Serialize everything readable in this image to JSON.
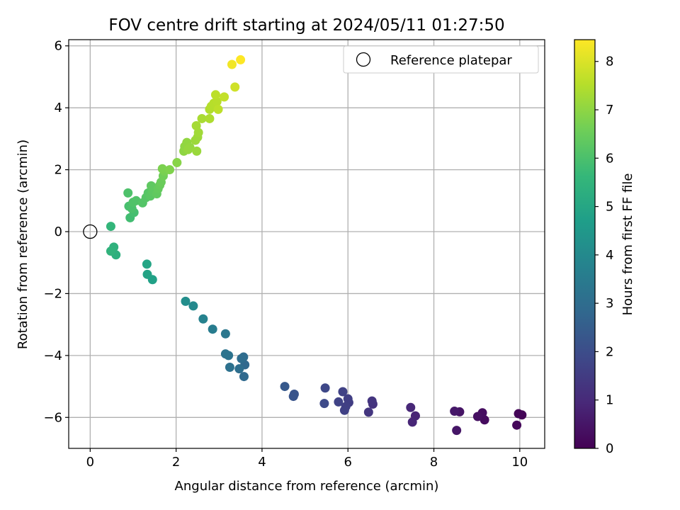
{
  "chart_data": {
    "type": "scatter",
    "title": "FOV centre drift starting at 2024/05/11 01:27:50",
    "xlabel": "Angular distance from reference (arcmin)",
    "ylabel": "Rotation from reference (arcmin)",
    "xlim": [
      -0.5,
      10.58
    ],
    "ylim": [
      -7.0,
      6.2
    ],
    "x_ticks": [
      0,
      2,
      4,
      6,
      8,
      10
    ],
    "y_ticks": [
      -6,
      -4,
      -2,
      0,
      2,
      4,
      6
    ],
    "x_tick_labels": [
      "0",
      "2",
      "4",
      "6",
      "8",
      "10"
    ],
    "y_tick_labels": [
      "−6",
      "−4",
      "−2",
      "0",
      "2",
      "4",
      "6"
    ],
    "grid": true,
    "legend": {
      "position": "upper-right",
      "label": "Reference platepar"
    },
    "reference_point": {
      "x": 0,
      "y": 0
    },
    "colorbar": {
      "label": "Hours from first FF file",
      "colormap": "viridis",
      "range": [
        0,
        8.45
      ],
      "ticks": [
        0,
        1,
        2,
        3,
        4,
        5,
        6,
        7,
        8
      ],
      "tick_labels": [
        "0",
        "1",
        "2",
        "3",
        "4",
        "5",
        "6",
        "7",
        "8"
      ]
    },
    "colormap_stops": [
      "#440154",
      "#482878",
      "#3e4989",
      "#31688e",
      "#26828e",
      "#1f9e89",
      "#35b779",
      "#6ece58",
      "#b5de2b",
      "#fde725"
    ],
    "points": [
      {
        "x": 10.05,
        "y": -5.92,
        "h": 0.05
      },
      {
        "x": 9.97,
        "y": -5.88,
        "h": 0.1
      },
      {
        "x": 9.93,
        "y": -6.25,
        "h": 0.15
      },
      {
        "x": 9.18,
        "y": -6.08,
        "h": 0.25
      },
      {
        "x": 9.13,
        "y": -5.85,
        "h": 0.3
      },
      {
        "x": 9.02,
        "y": -5.97,
        "h": 0.35
      },
      {
        "x": 8.6,
        "y": -5.82,
        "h": 0.45
      },
      {
        "x": 8.53,
        "y": -6.42,
        "h": 0.5
      },
      {
        "x": 8.48,
        "y": -5.8,
        "h": 0.55
      },
      {
        "x": 7.57,
        "y": -5.95,
        "h": 0.85
      },
      {
        "x": 7.5,
        "y": -6.15,
        "h": 0.9
      },
      {
        "x": 7.46,
        "y": -5.68,
        "h": 0.95
      },
      {
        "x": 6.58,
        "y": -5.57,
        "h": 1.25
      },
      {
        "x": 6.56,
        "y": -5.47,
        "h": 1.3
      },
      {
        "x": 6.48,
        "y": -5.83,
        "h": 1.35
      },
      {
        "x": 6.02,
        "y": -5.52,
        "h": 1.55
      },
      {
        "x": 6.0,
        "y": -5.4,
        "h": 1.6
      },
      {
        "x": 5.95,
        "y": -5.65,
        "h": 1.62
      },
      {
        "x": 5.92,
        "y": -5.77,
        "h": 1.65
      },
      {
        "x": 5.88,
        "y": -5.17,
        "h": 1.68
      },
      {
        "x": 5.78,
        "y": -5.5,
        "h": 1.72
      },
      {
        "x": 5.47,
        "y": -5.05,
        "h": 1.85
      },
      {
        "x": 5.45,
        "y": -5.55,
        "h": 1.9
      },
      {
        "x": 4.75,
        "y": -5.25,
        "h": 2.2
      },
      {
        "x": 4.73,
        "y": -5.32,
        "h": 2.22
      },
      {
        "x": 4.53,
        "y": -5.0,
        "h": 2.35
      },
      {
        "x": 3.6,
        "y": -4.3,
        "h": 2.85
      },
      {
        "x": 3.58,
        "y": -4.68,
        "h": 2.9
      },
      {
        "x": 3.57,
        "y": -4.05,
        "h": 2.95
      },
      {
        "x": 3.52,
        "y": -4.1,
        "h": 3.0
      },
      {
        "x": 3.47,
        "y": -4.43,
        "h": 3.05
      },
      {
        "x": 3.25,
        "y": -4.38,
        "h": 3.15
      },
      {
        "x": 3.22,
        "y": -4.0,
        "h": 3.2
      },
      {
        "x": 3.15,
        "y": -3.95,
        "h": 3.25
      },
      {
        "x": 3.15,
        "y": -3.3,
        "h": 3.35
      },
      {
        "x": 2.85,
        "y": -3.15,
        "h": 3.55
      },
      {
        "x": 2.63,
        "y": -2.82,
        "h": 3.75
      },
      {
        "x": 2.4,
        "y": -2.4,
        "h": 4.0
      },
      {
        "x": 2.22,
        "y": -2.25,
        "h": 4.15
      },
      {
        "x": 1.45,
        "y": -1.55,
        "h": 4.8
      },
      {
        "x": 1.33,
        "y": -1.38,
        "h": 4.9
      },
      {
        "x": 1.32,
        "y": -1.05,
        "h": 4.95
      },
      {
        "x": 0.6,
        "y": -0.75,
        "h": 5.35
      },
      {
        "x": 0.55,
        "y": -0.5,
        "h": 5.4
      },
      {
        "x": 0.48,
        "y": -0.63,
        "h": 5.45
      },
      {
        "x": 0.48,
        "y": 0.17,
        "h": 5.55
      },
      {
        "x": 0.93,
        "y": 0.45,
        "h": 5.85
      },
      {
        "x": 1.02,
        "y": 0.62,
        "h": 5.9
      },
      {
        "x": 0.9,
        "y": 0.82,
        "h": 5.95
      },
      {
        "x": 0.97,
        "y": 0.75,
        "h": 6.0
      },
      {
        "x": 0.88,
        "y": 1.25,
        "h": 6.05
      },
      {
        "x": 1.0,
        "y": 0.95,
        "h": 6.08
      },
      {
        "x": 1.07,
        "y": 1.0,
        "h": 6.1
      },
      {
        "x": 1.22,
        "y": 0.93,
        "h": 6.15
      },
      {
        "x": 1.3,
        "y": 1.1,
        "h": 6.18
      },
      {
        "x": 1.35,
        "y": 1.25,
        "h": 6.2
      },
      {
        "x": 1.4,
        "y": 1.15,
        "h": 6.25
      },
      {
        "x": 1.45,
        "y": 1.3,
        "h": 6.3
      },
      {
        "x": 1.42,
        "y": 1.48,
        "h": 6.33
      },
      {
        "x": 1.55,
        "y": 1.22,
        "h": 6.35
      },
      {
        "x": 1.58,
        "y": 1.38,
        "h": 6.4
      },
      {
        "x": 1.62,
        "y": 1.5,
        "h": 6.45
      },
      {
        "x": 1.65,
        "y": 1.6,
        "h": 6.5
      },
      {
        "x": 1.7,
        "y": 1.8,
        "h": 6.6
      },
      {
        "x": 1.73,
        "y": 1.95,
        "h": 6.7
      },
      {
        "x": 1.68,
        "y": 2.03,
        "h": 6.75
      },
      {
        "x": 1.85,
        "y": 2.0,
        "h": 6.8
      },
      {
        "x": 2.02,
        "y": 2.23,
        "h": 6.9
      },
      {
        "x": 2.18,
        "y": 2.6,
        "h": 7.0
      },
      {
        "x": 2.2,
        "y": 2.75,
        "h": 7.02
      },
      {
        "x": 2.25,
        "y": 2.88,
        "h": 7.05
      },
      {
        "x": 2.32,
        "y": 2.72,
        "h": 7.08
      },
      {
        "x": 2.28,
        "y": 2.65,
        "h": 7.1
      },
      {
        "x": 2.48,
        "y": 2.6,
        "h": 7.15
      },
      {
        "x": 2.45,
        "y": 2.95,
        "h": 7.18
      },
      {
        "x": 2.5,
        "y": 3.05,
        "h": 7.2
      },
      {
        "x": 2.52,
        "y": 3.2,
        "h": 7.25
      },
      {
        "x": 2.47,
        "y": 3.42,
        "h": 7.3
      },
      {
        "x": 2.6,
        "y": 3.65,
        "h": 7.35
      },
      {
        "x": 2.78,
        "y": 3.65,
        "h": 7.4
      },
      {
        "x": 2.78,
        "y": 3.95,
        "h": 7.45
      },
      {
        "x": 2.82,
        "y": 4.05,
        "h": 7.5
      },
      {
        "x": 2.88,
        "y": 4.15,
        "h": 7.52
      },
      {
        "x": 2.95,
        "y": 4.2,
        "h": 7.55
      },
      {
        "x": 2.92,
        "y": 4.42,
        "h": 7.6
      },
      {
        "x": 2.98,
        "y": 3.95,
        "h": 7.62
      },
      {
        "x": 3.12,
        "y": 4.35,
        "h": 7.7
      },
      {
        "x": 3.37,
        "y": 4.67,
        "h": 7.85
      },
      {
        "x": 3.3,
        "y": 5.4,
        "h": 8.3
      },
      {
        "x": 3.5,
        "y": 5.55,
        "h": 8.45
      }
    ]
  }
}
